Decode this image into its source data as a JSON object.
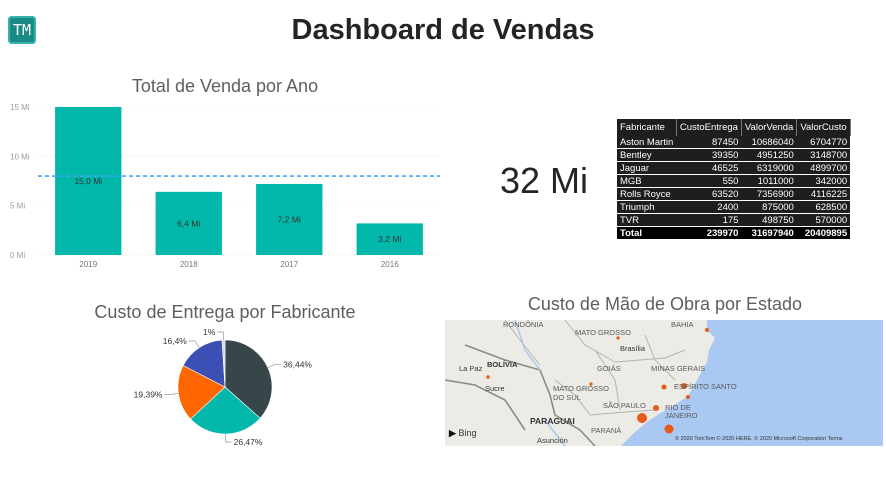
{
  "header": {
    "logo_text": "TM",
    "title": "Dashboard de Vendas"
  },
  "bar_visual": {
    "title": "Total de Venda por Ano"
  },
  "pie_visual": {
    "title": "Custo de Entrega por Fabricante"
  },
  "map_visual": {
    "title": "Custo de Mão de Obra por Estado",
    "labels": [
      "RONDÔNIA",
      "MATO GROSSO",
      "BAHIA",
      "Brasília",
      "GOIÁS",
      "MINAS GERAIS",
      "La Paz",
      "BOLÍVIA",
      "Sucre",
      "MATO GROSSO DO SUL",
      "ESPÍRITO SANTO",
      "SÃO PAULO",
      "RIO DE JANEIRO",
      "PARAGUAI",
      "PARANÁ",
      "Asunción"
    ],
    "bing": "Bing",
    "copyright": "© 2020 TomTom © 2020 HERE, © 2020 Microsoft Corporation  Terms"
  },
  "kpi": {
    "value": "32 Mi"
  },
  "table": {
    "headers": [
      "Fabricante",
      "CustoEntrega",
      "ValorVenda",
      "ValorCusto"
    ],
    "rows": [
      [
        "Aston Martin",
        "87450",
        "10686040",
        "6704770"
      ],
      [
        "Bentley",
        "39350",
        "4951250",
        "3148700"
      ],
      [
        "Jaguar",
        "46525",
        "6319000",
        "4899700"
      ],
      [
        "MGB",
        "550",
        "1011000",
        "342000"
      ],
      [
        "Rolls Royce",
        "63520",
        "7356900",
        "4116225"
      ],
      [
        "Triumph",
        "2400",
        "875000",
        "628500"
      ],
      [
        "TVR",
        "175",
        "498750",
        "570000"
      ]
    ],
    "total": [
      "Total",
      "239970",
      "31697940",
      "20409895"
    ]
  },
  "colors": {
    "teal": "#01b8aa",
    "dark": "#374649",
    "orange": "#fd625e",
    "orange2": "#ff6600",
    "blue": "#3b4fb5",
    "avg_line": "#41a4ff"
  },
  "chart_data": [
    {
      "type": "bar",
      "title": "Total de Venda por Ano",
      "categories": [
        "2019",
        "2018",
        "2017",
        "2016"
      ],
      "values": [
        15.0,
        6.4,
        7.2,
        3.2
      ],
      "data_labels": [
        "15,0 Mi",
        "6,4 Mi",
        "7,2 Mi",
        "3,2 Mi"
      ],
      "y_ticks": [
        "0 Mi",
        "5 Mi",
        "10 Mi",
        "15 Mi"
      ],
      "y_tick_values": [
        0,
        5,
        10,
        15
      ],
      "ylim": [
        0,
        15
      ],
      "average_line": 8.0,
      "grid": true
    },
    {
      "type": "pie",
      "title": "Custo de Entrega por Fabricante",
      "values": [
        36.44,
        26.47,
        19.39,
        16.4,
        1.0
      ],
      "data_labels": [
        "36,44%",
        "26,47%",
        "19,39%",
        "16,4%",
        "1%"
      ],
      "colors": [
        "#374649",
        "#01b8aa",
        "#ff6600",
        "#3b4fb5",
        "#d9d9d9"
      ]
    }
  ]
}
